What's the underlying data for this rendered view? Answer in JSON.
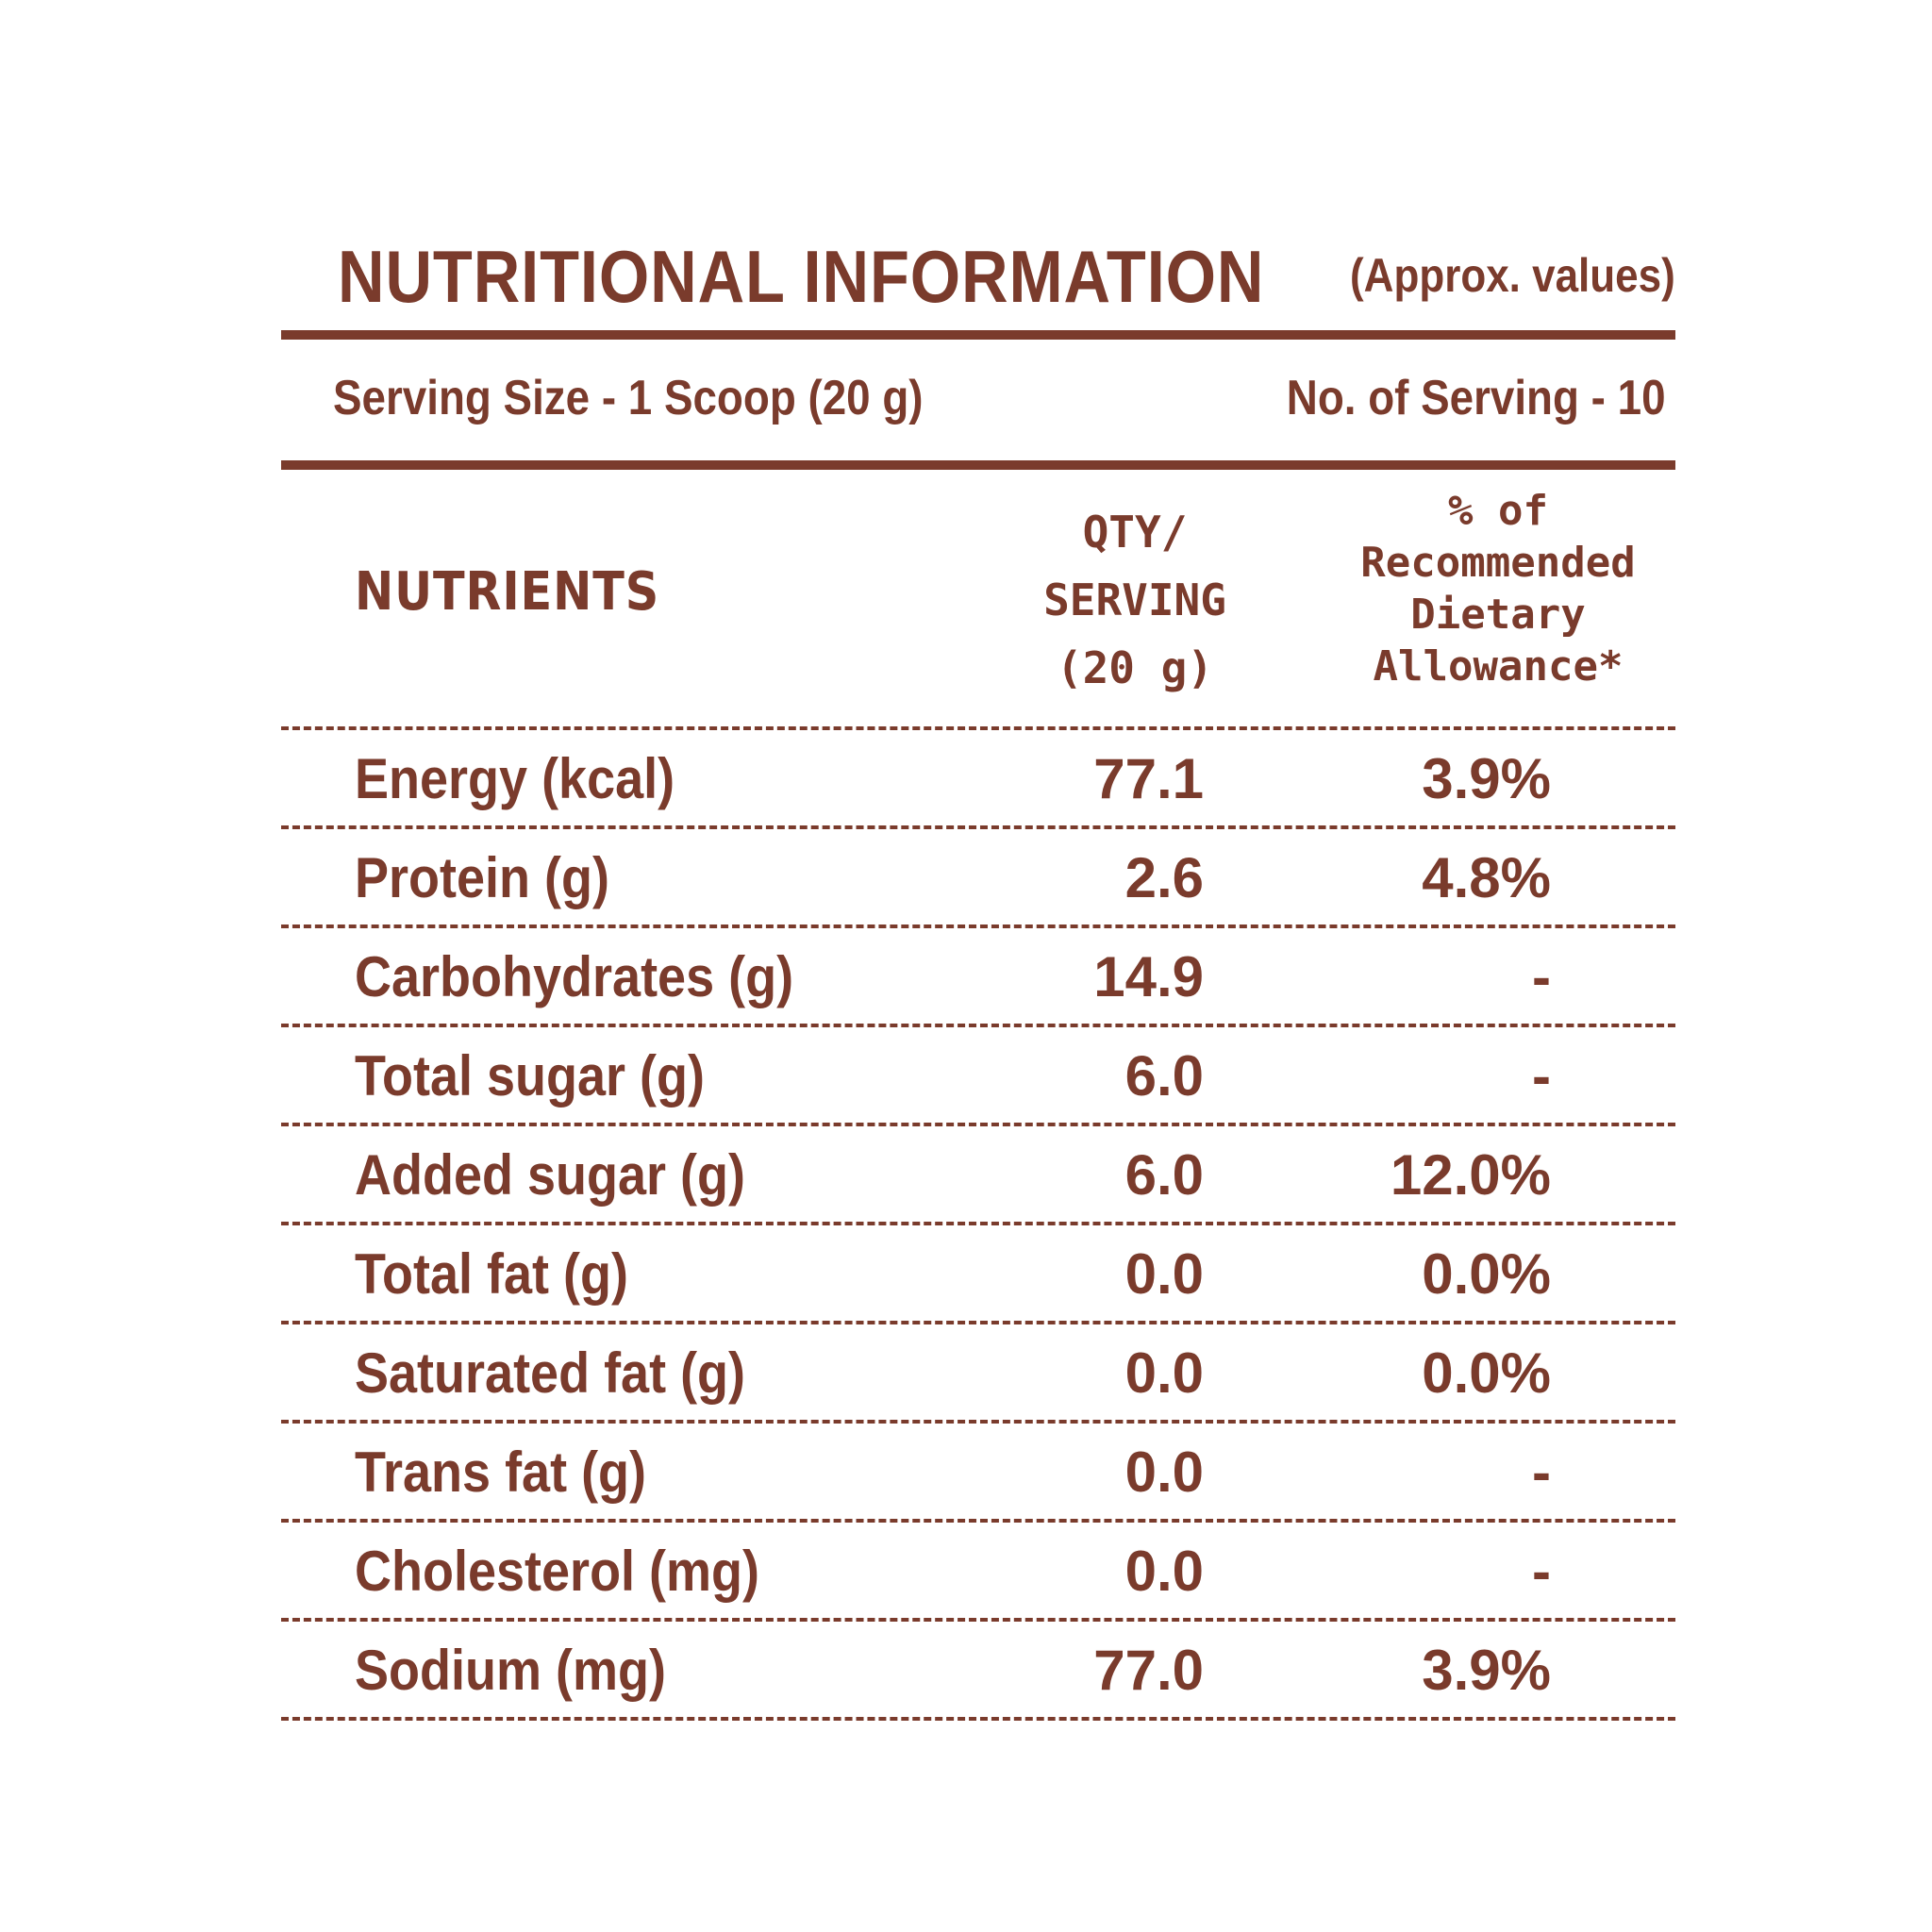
{
  "header": {
    "title": "NUTRITIONAL INFORMATION",
    "approx": "(Approx. values)"
  },
  "serving": {
    "size": "Serving Size - 1 Scoop (20 g)",
    "count": "No. of Serving - 10"
  },
  "columns": {
    "nutrients": "NUTRIENTS",
    "qty_line1": "QTY/",
    "qty_line2": "SERVING",
    "qty_line3": "(20 g)",
    "rda_line1": "% of",
    "rda_line2": "Recommended",
    "rda_line3": "Dietary",
    "rda_line4": "Allowance*"
  },
  "rows": [
    {
      "name": "Energy (kcal)",
      "qty": "77.1",
      "rda": "3.9%"
    },
    {
      "name": "Protein (g)",
      "qty": "2.6",
      "rda": "4.8%"
    },
    {
      "name": "Carbohydrates (g)",
      "qty": "14.9",
      "rda": "-"
    },
    {
      "name": "Total sugar (g)",
      "qty": "6.0",
      "rda": "-"
    },
    {
      "name": "Added sugar (g)",
      "qty": "6.0",
      "rda": "12.0%"
    },
    {
      "name": "Total fat (g)",
      "qty": "0.0",
      "rda": "0.0%"
    },
    {
      "name": "Saturated fat (g)",
      "qty": "0.0",
      "rda": "0.0%"
    },
    {
      "name": "Trans fat (g)",
      "qty": "0.0",
      "rda": "-"
    },
    {
      "name": "Cholesterol (mg)",
      "qty": "0.0",
      "rda": "-"
    },
    {
      "name": "Sodium (mg)",
      "qty": "77.0",
      "rda": "3.9%"
    }
  ],
  "colors": {
    "text": "#7a3b2c",
    "background": "#ffffff"
  }
}
